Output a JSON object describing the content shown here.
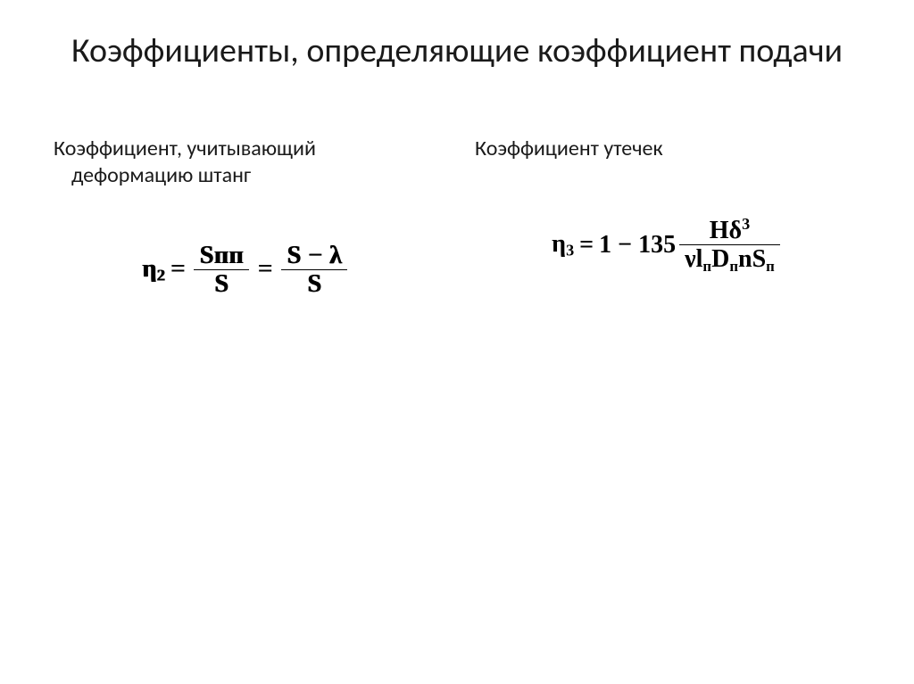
{
  "colors": {
    "background": "#ffffff",
    "text": "#1a1a1a",
    "formula": "#000000"
  },
  "title": "Коэффициенты, определяющие коэффициент подачи",
  "left": {
    "heading": "Коэффициент, учитывающий деформацию штанг",
    "formula": {
      "lhs_symbol": "η",
      "lhs_sub": "2",
      "frac1_num": "Sпп",
      "frac1_den": "S",
      "frac2_num_left": "S",
      "frac2_num_minus": "−",
      "frac2_num_right": "λ",
      "frac2_den": "S"
    }
  },
  "right": {
    "heading": "Коэффициент утечек",
    "formula": {
      "lhs_symbol": "η",
      "lhs_sub": "3",
      "rhs_lead": "1 − 135",
      "num_H": "H",
      "num_delta": "δ",
      "num_exp": "3",
      "den_nu": "ν",
      "den_l": "l",
      "den_l_sub": "п",
      "den_D": "D",
      "den_D_sub": "п",
      "den_n": "n",
      "den_S": "S",
      "den_S_sub": "п"
    }
  }
}
